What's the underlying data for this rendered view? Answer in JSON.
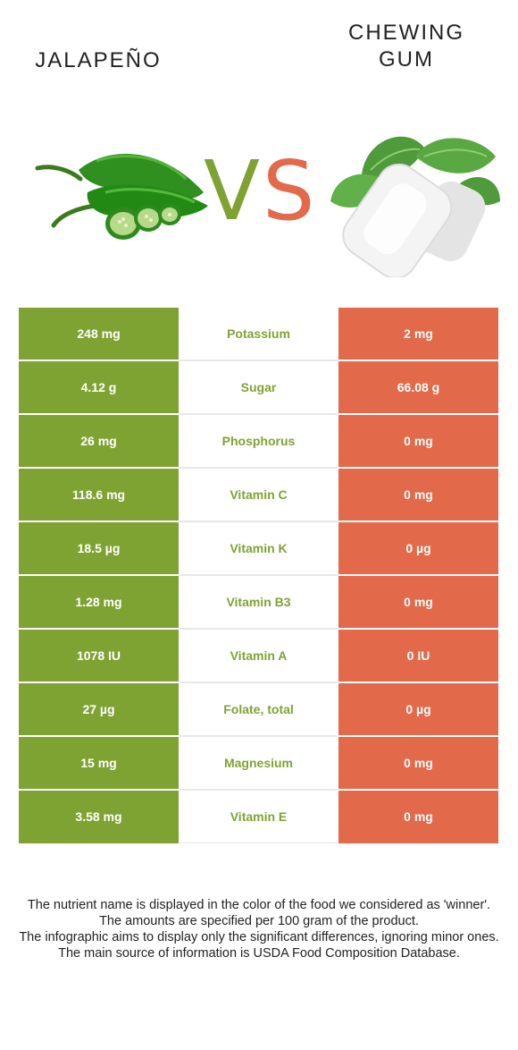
{
  "left_food": {
    "name": "JALAPEÑO",
    "color": "#7fa333"
  },
  "right_food": {
    "name": "CHEWING GUM",
    "color": "#e2694a"
  },
  "vs": {
    "v": "V",
    "s": "S"
  },
  "rows": [
    {
      "nutrient": "Potassium",
      "left": "248 mg",
      "right": "2 mg"
    },
    {
      "nutrient": "Sugar",
      "left": "4.12 g",
      "right": "66.08 g"
    },
    {
      "nutrient": "Phosphorus",
      "left": "26 mg",
      "right": "0 mg"
    },
    {
      "nutrient": "Vitamin C",
      "left": "118.6 mg",
      "right": "0 mg"
    },
    {
      "nutrient": "Vitamin K",
      "left": "18.5 µg",
      "right": "0 µg"
    },
    {
      "nutrient": "Vitamin B3",
      "left": "1.28 mg",
      "right": "0 mg"
    },
    {
      "nutrient": "Vitamin A",
      "left": "1078 IU",
      "right": "0 IU"
    },
    {
      "nutrient": "Folate, total",
      "left": "27 µg",
      "right": "0 µg"
    },
    {
      "nutrient": "Magnesium",
      "left": "15 mg",
      "right": "0 mg"
    },
    {
      "nutrient": "Vitamin E",
      "left": "3.58 mg",
      "right": "0 mg"
    }
  ],
  "footer": [
    "The nutrient name is displayed in the color of the food we considered as 'winner'.",
    "The amounts are specified per 100 gram of the product.",
    "The infographic aims to display only the significant differences, ignoring minor ones.",
    "The main source of information is USDA Food Composition Database."
  ],
  "images": {
    "left": "jalapeno-image",
    "right": "chewing-gum-image"
  }
}
